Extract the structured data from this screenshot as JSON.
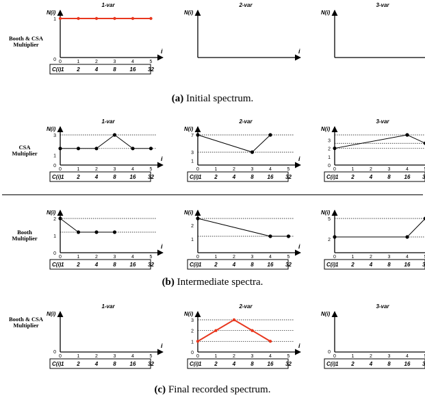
{
  "colors": {
    "red": "#e8371e",
    "black": "#000000"
  },
  "captions": [
    {
      "label": "(a)",
      "text": "Initial spectrum."
    },
    {
      "label": "(b)",
      "text": "Intermediate spectra."
    },
    {
      "label": "(c)",
      "text": "Final recorded spectrum."
    }
  ],
  "row_labels": {
    "a": "Booth & CSA Multiplier",
    "b_csa": "CSA Multiplier",
    "b_booth": "Booth Multiplier",
    "c": "Booth & CSA Multiplier"
  },
  "common": {
    "ylabel": "N(i)",
    "xlabel": "i",
    "ci_label": "C(i)",
    "i_ticks": [
      "0",
      "1",
      "2",
      "3",
      "4",
      "5"
    ],
    "c_values": [
      "1",
      "2",
      "4",
      "8",
      "16",
      "32"
    ],
    "panel_titles": [
      "1-var",
      "2-var",
      "3-var"
    ]
  },
  "chart_data": [
    {
      "id": "a1",
      "type": "line",
      "title": "1-var",
      "color": "red",
      "yticks": [
        "0",
        "1"
      ],
      "x": [
        0,
        1,
        2,
        3,
        4,
        5
      ],
      "y": [
        1,
        1,
        1,
        1,
        1,
        1
      ]
    },
    {
      "id": "a2",
      "type": "line",
      "title": "2-var",
      "x": [],
      "y": [],
      "yticks": []
    },
    {
      "id": "a3",
      "type": "line",
      "title": "3-var",
      "x": [],
      "y": [],
      "yticks": []
    },
    {
      "id": "b1",
      "type": "line",
      "title": "1-var",
      "color": "black",
      "yticks": [
        "0",
        "1",
        "3"
      ],
      "x": [
        0,
        1,
        2,
        3,
        4,
        5
      ],
      "y": [
        1.65,
        1.65,
        1.65,
        3,
        1.65,
        1.65
      ]
    },
    {
      "id": "b2",
      "type": "line",
      "title": "2-var",
      "color": "black",
      "yticks": [
        "1",
        "3",
        "7"
      ],
      "x": [
        0,
        3,
        4
      ],
      "y": [
        7,
        3,
        7
      ]
    },
    {
      "id": "b3",
      "type": "line",
      "title": "3-var",
      "color": "black",
      "yticks": [
        "0",
        "1",
        "2",
        "3"
      ],
      "x": [
        0,
        4,
        5
      ],
      "y": [
        2,
        3.6,
        2.6
      ]
    },
    {
      "id": "b4",
      "type": "line",
      "title": "",
      "color": "black",
      "yticks": [
        "0",
        "1",
        "2"
      ],
      "x": [
        0,
        1,
        2,
        3
      ],
      "y": [
        2,
        1.2,
        1.2,
        1.2
      ]
    },
    {
      "id": "b5",
      "type": "line",
      "title": "",
      "color": "black",
      "yticks": [
        "1",
        "2"
      ],
      "x": [
        0,
        4,
        5
      ],
      "y": [
        2.5,
        1.2,
        1.2
      ]
    },
    {
      "id": "b6",
      "type": "line",
      "title": "",
      "color": "black",
      "yticks": [
        "2",
        "5"
      ],
      "x": [
        0,
        4,
        5
      ],
      "y": [
        2.3,
        2.3,
        5
      ]
    },
    {
      "id": "c1",
      "type": "line",
      "title": "1-var",
      "x": [],
      "y": [],
      "yticks": [
        "0"
      ]
    },
    {
      "id": "c2",
      "type": "line",
      "title": "2-var",
      "color": "red",
      "yticks": [
        "0",
        "1",
        "2",
        "3"
      ],
      "x": [
        0,
        1,
        2,
        3,
        4
      ],
      "y": [
        1,
        2,
        3,
        2,
        1
      ]
    },
    {
      "id": "c3",
      "type": "line",
      "title": "3-var",
      "x": [],
      "y": [],
      "yticks": [
        "0"
      ]
    }
  ]
}
